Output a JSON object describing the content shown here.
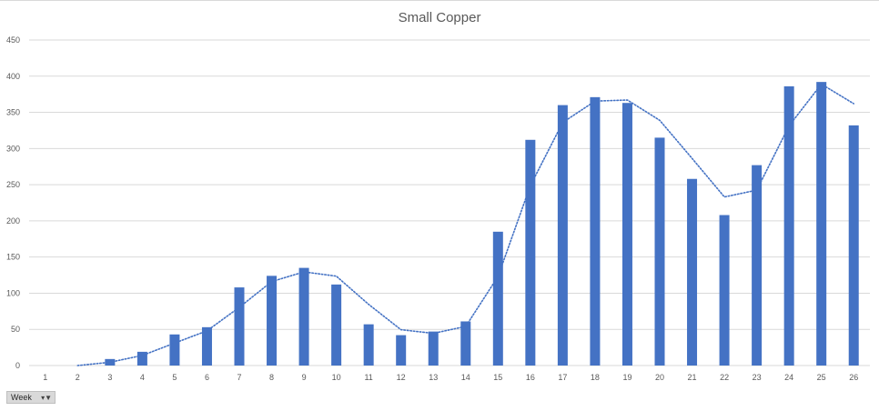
{
  "chart_data": {
    "type": "bar",
    "title": "Small Copper",
    "xlabel": "",
    "ylabel": "",
    "ylim": [
      0,
      450
    ],
    "yticks": [
      0,
      50,
      100,
      150,
      200,
      250,
      300,
      350,
      400,
      450
    ],
    "grid": true,
    "categories": [
      "1",
      "2",
      "3",
      "4",
      "5",
      "6",
      "7",
      "8",
      "9",
      "10",
      "11",
      "12",
      "13",
      "14",
      "15",
      "16",
      "17",
      "18",
      "19",
      "20",
      "21",
      "22",
      "23",
      "24",
      "25",
      "26"
    ],
    "series": [
      {
        "type": "bar",
        "color": "#4472c4",
        "values": [
          0,
          0,
          9,
          19,
          43,
          53,
          108,
          124,
          135,
          112,
          57,
          42,
          47,
          61,
          185,
          312,
          360,
          371,
          363,
          315,
          258,
          208,
          277,
          386,
          392,
          332
        ]
      },
      {
        "type": "line",
        "style": "dotted",
        "color": "#4472c4",
        "values": [
          null,
          0,
          4.5,
          14,
          31,
          48,
          80.5,
          116,
          129.5,
          123.5,
          84.5,
          49.5,
          44.5,
          54,
          123,
          248.5,
          336,
          365.5,
          367,
          339,
          286.5,
          233,
          242.5,
          331.5,
          389,
          362
        ]
      }
    ]
  },
  "field_button": {
    "label": "Week",
    "icon": "filter-dropdown-icon"
  }
}
